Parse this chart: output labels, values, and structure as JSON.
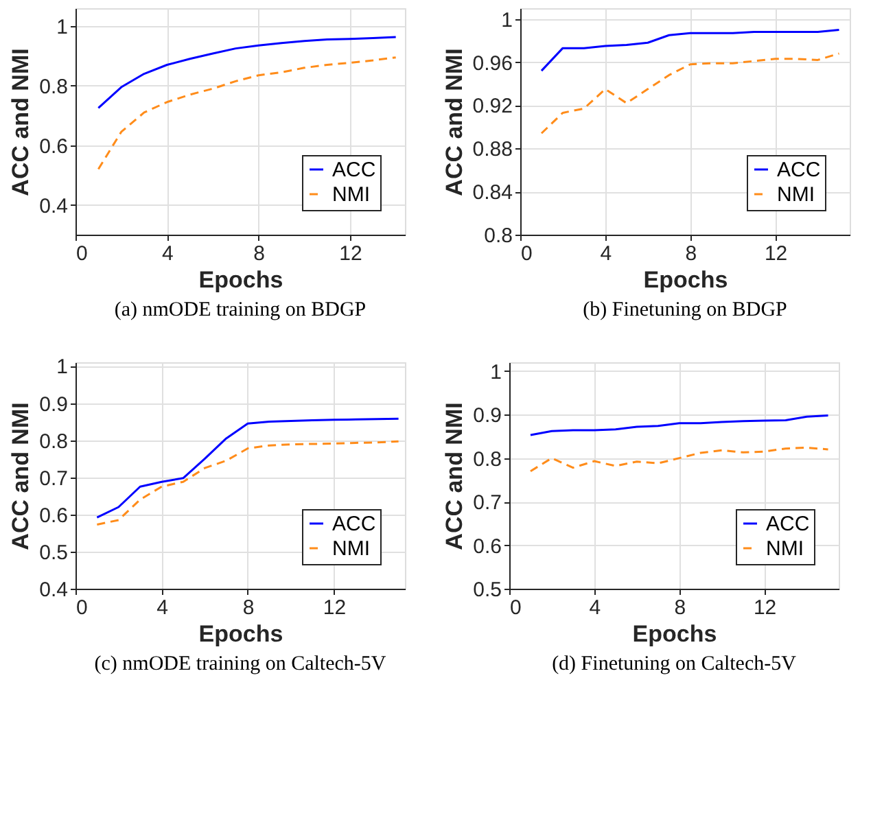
{
  "chart_data": [
    {
      "type": "line",
      "title": "(a) nmODE training on BDGP",
      "xlabel": "Epochs",
      "ylabel": "ACC and NMI",
      "x": [
        1,
        2,
        3,
        4,
        5,
        6,
        7,
        8,
        9,
        10,
        11,
        12,
        13,
        14
      ],
      "xlim": [
        0,
        14.4
      ],
      "xticks": [
        0,
        4,
        8,
        12
      ],
      "ylim": [
        0.3,
        1.06
      ],
      "yticks": [
        0.4,
        0.6,
        0.8,
        1
      ],
      "grid": true,
      "legend": "bottom right",
      "series": [
        {
          "name": "ACC",
          "color": "#0000ff",
          "line_style": "solid",
          "values": [
            0.725,
            0.795,
            0.84,
            0.87,
            0.89,
            0.908,
            0.925,
            0.935,
            0.943,
            0.95,
            0.955,
            0.957,
            0.96,
            0.963
          ]
        },
        {
          "name": "NMI",
          "color": "#ff8c1a",
          "line_style": "dashed",
          "values": [
            0.52,
            0.645,
            0.71,
            0.745,
            0.77,
            0.79,
            0.815,
            0.835,
            0.845,
            0.86,
            0.87,
            0.877,
            0.885,
            0.895
          ]
        }
      ]
    },
    {
      "type": "line",
      "title": "(b) Finetuning on BDGP",
      "xlabel": "Epochs",
      "ylabel": "ACC and NMI",
      "x": [
        1,
        2,
        3,
        4,
        5,
        6,
        7,
        8,
        9,
        10,
        11,
        12,
        13,
        14,
        15
      ],
      "xlim": [
        0,
        15.5
      ],
      "xticks": [
        0,
        4,
        8,
        12
      ],
      "ylim": [
        0.8,
        1.01
      ],
      "yticks": [
        0.8,
        0.84,
        0.88,
        0.92,
        0.96,
        1
      ],
      "grid": true,
      "legend": "bottom right",
      "series": [
        {
          "name": "ACC",
          "color": "#0000ff",
          "line_style": "solid",
          "values": [
            0.952,
            0.973,
            0.973,
            0.975,
            0.976,
            0.978,
            0.985,
            0.987,
            0.987,
            0.987,
            0.988,
            0.988,
            0.988,
            0.988,
            0.99
          ]
        },
        {
          "name": "NMI",
          "color": "#ff8c1a",
          "line_style": "dashed",
          "values": [
            0.894,
            0.913,
            0.917,
            0.935,
            0.922,
            0.935,
            0.948,
            0.958,
            0.959,
            0.959,
            0.961,
            0.963,
            0.963,
            0.962,
            0.968
          ]
        }
      ]
    },
    {
      "type": "line",
      "title": "(c) nmODE training on Caltech-5V",
      "xlabel": "Epochs",
      "ylabel": "ACC and NMI",
      "x": [
        1,
        2,
        3,
        4,
        5,
        6,
        7,
        8,
        9,
        10,
        11,
        12,
        13,
        14,
        15
      ],
      "xlim": [
        0,
        15.3
      ],
      "xticks": [
        0,
        4,
        8,
        12
      ],
      "ylim": [
        0.4,
        1.01
      ],
      "yticks": [
        0.4,
        0.5,
        0.6,
        0.7,
        0.8,
        0.9,
        1
      ],
      "grid": true,
      "legend": "bottom right",
      "series": [
        {
          "name": "ACC",
          "color": "#0000ff",
          "line_style": "solid",
          "values": [
            0.592,
            0.62,
            0.675,
            0.688,
            0.698,
            0.75,
            0.805,
            0.845,
            0.85,
            0.852,
            0.854,
            0.855,
            0.856,
            0.857,
            0.858
          ]
        },
        {
          "name": "NMI",
          "color": "#ff8c1a",
          "line_style": "dashed",
          "values": [
            0.573,
            0.585,
            0.64,
            0.675,
            0.688,
            0.725,
            0.745,
            0.778,
            0.786,
            0.789,
            0.79,
            0.791,
            0.793,
            0.794,
            0.797
          ]
        }
      ]
    },
    {
      "type": "line",
      "title": "(d) Finetuning on Caltech-5V",
      "xlabel": "Epochs",
      "ylabel": "ACC and NMI",
      "x": [
        1,
        2,
        3,
        4,
        5,
        6,
        7,
        8,
        9,
        10,
        11,
        12,
        13,
        14,
        15
      ],
      "xlim": [
        0,
        15.5
      ],
      "xticks": [
        0,
        4,
        8,
        12
      ],
      "ylim": [
        0.5,
        1.02
      ],
      "yticks": [
        0.5,
        0.6,
        0.7,
        0.8,
        0.9,
        1
      ],
      "grid": true,
      "legend": "bottom right",
      "series": [
        {
          "name": "ACC",
          "color": "#0000ff",
          "line_style": "solid",
          "values": [
            0.853,
            0.862,
            0.864,
            0.864,
            0.866,
            0.872,
            0.874,
            0.88,
            0.88,
            0.883,
            0.885,
            0.886,
            0.887,
            0.895,
            0.898
          ]
        },
        {
          "name": "NMI",
          "color": "#ff8c1a",
          "line_style": "dashed",
          "values": [
            0.77,
            0.8,
            0.778,
            0.793,
            0.782,
            0.792,
            0.788,
            0.8,
            0.812,
            0.818,
            0.813,
            0.815,
            0.822,
            0.824,
            0.82
          ]
        }
      ]
    }
  ]
}
